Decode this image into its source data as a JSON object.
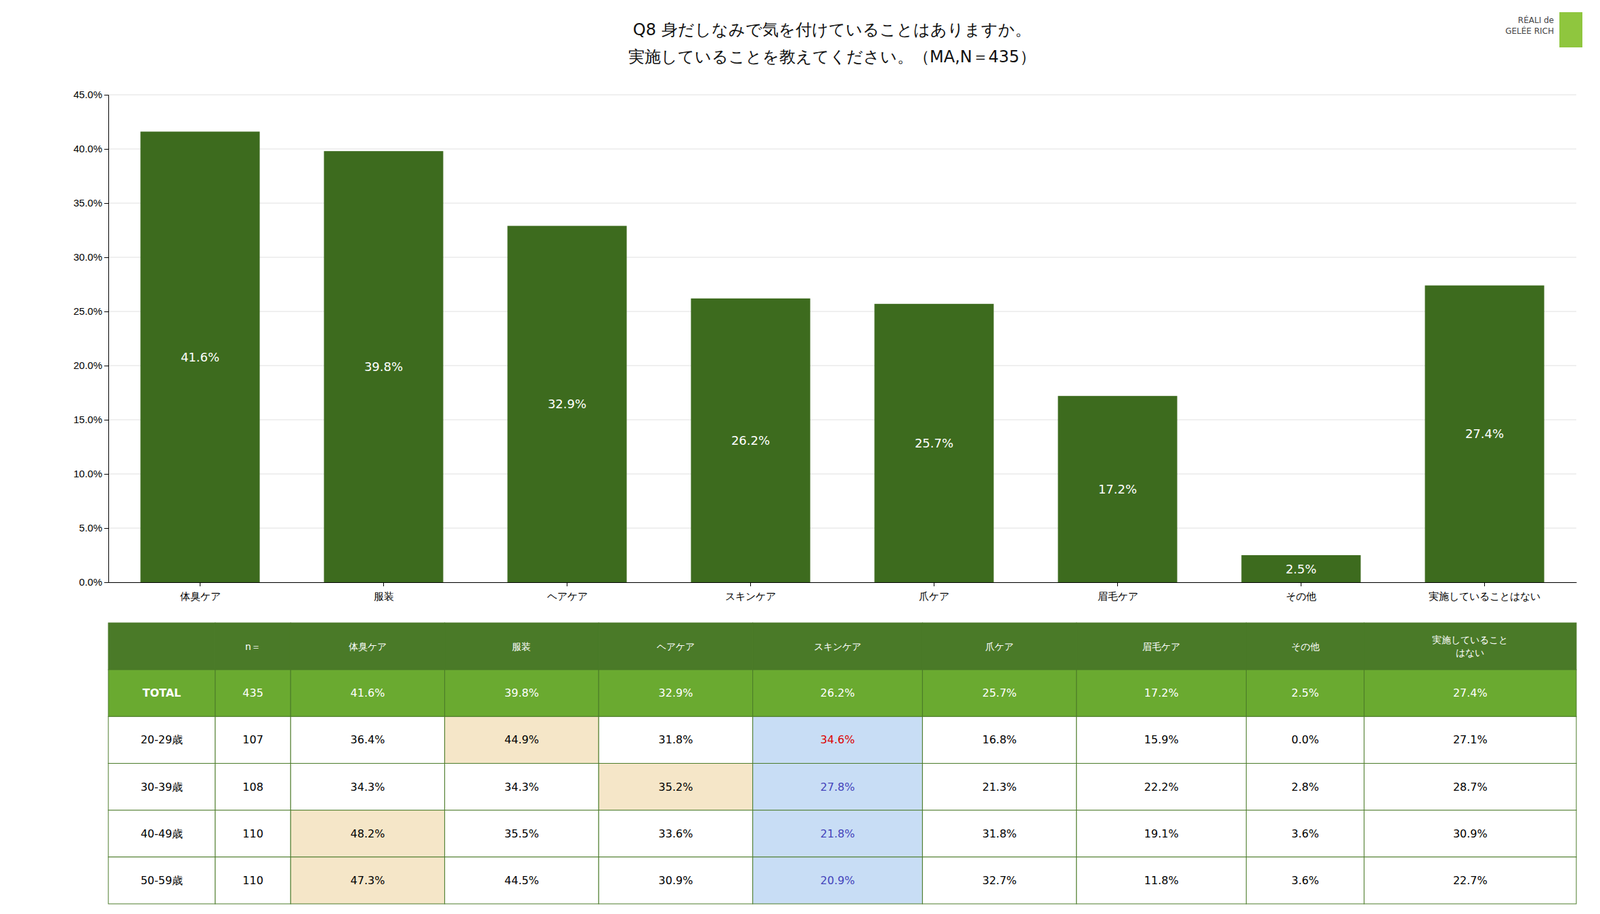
{
  "chart_data": [
    {
      "type": "bar",
      "title": "Q8 身だしなみで気を付けていることはありますか。",
      "subtitle": "実施していることを教えてください。（MA,N＝435）",
      "categories": [
        "体臭ケア",
        "服装",
        "ヘアケア",
        "スキンケア",
        "爪ケア",
        "眉毛ケア",
        "その他",
        "実施していることはない"
      ],
      "values": [
        41.6,
        39.8,
        32.9,
        26.2,
        25.7,
        17.2,
        2.5,
        27.4
      ],
      "value_labels": [
        "41.6%",
        "39.8%",
        "32.9%",
        "26.2%",
        "25.7%",
        "17.2%",
        "2.5%",
        "27.4%"
      ],
      "data_labels": true,
      "color": "#3d6b1e",
      "ylim": [
        0,
        45
      ],
      "yticks": [
        {
          "value": 0,
          "label": "0.0%"
        },
        {
          "value": 5,
          "label": "5.0%"
        },
        {
          "value": 10,
          "label": "10.0%"
        },
        {
          "value": 15,
          "label": "15.0%"
        },
        {
          "value": 20,
          "label": "20.0%"
        },
        {
          "value": 25,
          "label": "25.0%"
        },
        {
          "value": 30,
          "label": "30.0%"
        },
        {
          "value": 35,
          "label": "35.0%"
        },
        {
          "value": 40,
          "label": "40.0%"
        },
        {
          "value": 45,
          "label": "45.0%"
        }
      ],
      "grid": true,
      "annotations": [
        "RÉALI de",
        "GELÉE RICH"
      ]
    },
    {
      "type": "table",
      "color": "#4a7a28",
      "columns": [
        "n＝",
        "体臭ケア",
        "服装",
        "ヘアケア",
        "スキンケア",
        "爪ケア",
        "眉毛ケア",
        "その他",
        "実施していること\nはない"
      ],
      "rows": [
        {
          "label": "TOTAL",
          "n": 435,
          "values": [
            41.6,
            39.8,
            32.9,
            26.2,
            25.7,
            17.2,
            2.5,
            27.4
          ],
          "value_labels": [
            "41.6%",
            "39.8%",
            "32.9%",
            "26.2%",
            "25.7%",
            "17.2%",
            "2.5%",
            "27.4%"
          ],
          "color": "#6aaa30",
          "text_color": "#ffffff",
          "colors": [
            "#6aaa30",
            "#6aaa30",
            "#6aaa30",
            "#6aaa30",
            "#6aaa30",
            "#6aaa30",
            "#6aaa30",
            "#6aaa30"
          ],
          "text_colors": [
            "#ffffff",
            "#ffffff",
            "#ffffff",
            "#ffffff",
            "#ffffff",
            "#ffffff",
            "#ffffff",
            "#ffffff"
          ]
        },
        {
          "label": "20-29歳",
          "n": 107,
          "values": [
            36.4,
            44.9,
            31.8,
            34.6,
            16.8,
            15.9,
            0.0,
            27.1
          ],
          "value_labels": [
            "36.4%",
            "44.9%",
            "31.8%",
            "34.6%",
            "16.8%",
            "15.9%",
            "0.0%",
            "27.1%"
          ],
          "color": "#ffffff",
          "text_color": "#000000",
          "colors": [
            "#ffffff",
            "#f5e6c8",
            "#ffffff",
            "#c8ddf5",
            "#ffffff",
            "#ffffff",
            "#ffffff",
            "#ffffff"
          ],
          "text_colors": [
            "#000000",
            "#000000",
            "#000000",
            "#dd0000",
            "#000000",
            "#000000",
            "#000000",
            "#000000"
          ]
        },
        {
          "label": "30-39歳",
          "n": 108,
          "values": [
            34.3,
            34.3,
            35.2,
            27.8,
            21.3,
            22.2,
            2.8,
            28.7
          ],
          "value_labels": [
            "34.3%",
            "34.3%",
            "35.2%",
            "27.8%",
            "21.3%",
            "22.2%",
            "2.8%",
            "28.7%"
          ],
          "color": "#ffffff",
          "text_color": "#000000",
          "colors": [
            "#ffffff",
            "#ffffff",
            "#f5e6c8",
            "#c8ddf5",
            "#ffffff",
            "#ffffff",
            "#ffffff",
            "#ffffff"
          ],
          "text_colors": [
            "#000000",
            "#000000",
            "#000000",
            "#4444bb",
            "#000000",
            "#000000",
            "#000000",
            "#000000"
          ]
        },
        {
          "label": "40-49歳",
          "n": 110,
          "values": [
            48.2,
            35.5,
            33.6,
            21.8,
            31.8,
            19.1,
            3.6,
            30.9
          ],
          "value_labels": [
            "48.2%",
            "35.5%",
            "33.6%",
            "21.8%",
            "31.8%",
            "19.1%",
            "3.6%",
            "30.9%"
          ],
          "color": "#ffffff",
          "text_color": "#000000",
          "colors": [
            "#f5e6c8",
            "#ffffff",
            "#ffffff",
            "#c8ddf5",
            "#ffffff",
            "#ffffff",
            "#ffffff",
            "#ffffff"
          ],
          "text_colors": [
            "#000000",
            "#000000",
            "#000000",
            "#4444bb",
            "#000000",
            "#000000",
            "#000000",
            "#000000"
          ]
        },
        {
          "label": "50-59歳",
          "n": 110,
          "values": [
            47.3,
            44.5,
            30.9,
            20.9,
            32.7,
            11.8,
            3.6,
            22.7
          ],
          "value_labels": [
            "47.3%",
            "44.5%",
            "30.9%",
            "20.9%",
            "32.7%",
            "11.8%",
            "3.6%",
            "22.7%"
          ],
          "color": "#ffffff",
          "text_color": "#000000",
          "colors": [
            "#f5e6c8",
            "#ffffff",
            "#ffffff",
            "#c8ddf5",
            "#ffffff",
            "#ffffff",
            "#ffffff",
            "#ffffff"
          ],
          "text_colors": [
            "#000000",
            "#000000",
            "#000000",
            "#4444bb",
            "#000000",
            "#000000",
            "#000000",
            "#000000"
          ]
        }
      ]
    }
  ]
}
